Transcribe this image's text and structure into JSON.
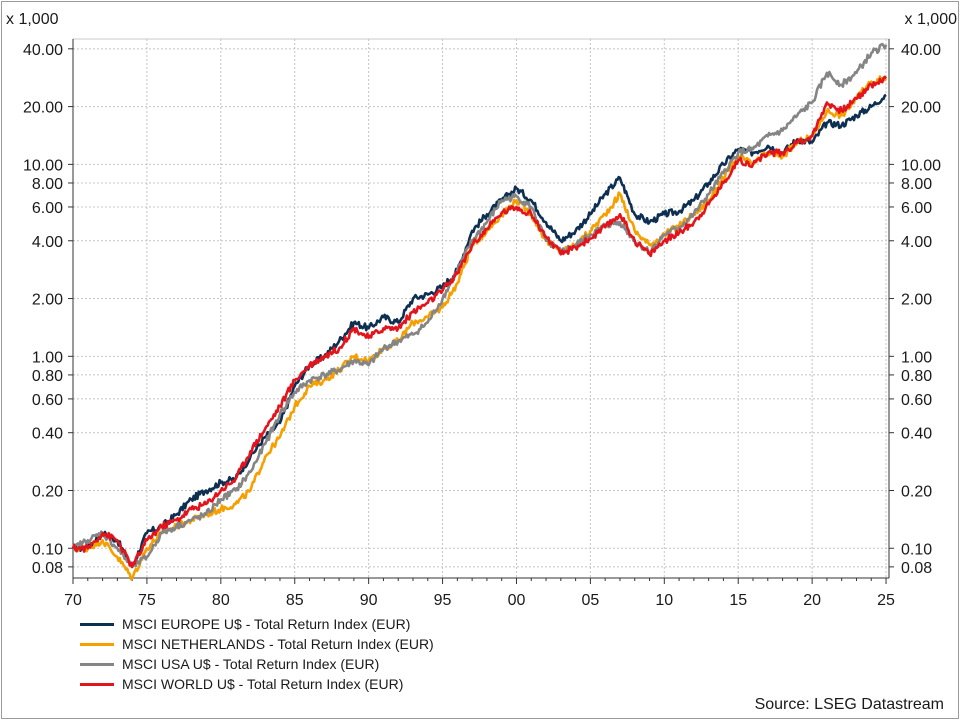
{
  "chart_data": {
    "type": "line",
    "title": "",
    "y_unit_label": "x 1,000",
    "y_scale": "log",
    "ylim": [
      0.07,
      45
    ],
    "y_ticks": [
      0.08,
      0.1,
      0.2,
      0.4,
      0.6,
      0.8,
      1.0,
      2.0,
      4.0,
      6.0,
      8.0,
      10.0,
      20.0,
      40.0
    ],
    "y_tick_labels": [
      "0.08",
      "0.10",
      "0.20",
      "0.40",
      "0.60",
      "0.80",
      "1.00",
      "2.00",
      "4.00",
      "6.00",
      "8.00",
      "10.00",
      "20.00",
      "40.00"
    ],
    "xlim": [
      1970,
      2025.2
    ],
    "x_ticks": [
      1970,
      1975,
      1980,
      1985,
      1990,
      1995,
      2000,
      2005,
      2010,
      2015,
      2020,
      2025
    ],
    "x_tick_labels": [
      "70",
      "75",
      "80",
      "85",
      "90",
      "95",
      "00",
      "05",
      "10",
      "15",
      "20",
      "25"
    ],
    "grid": true,
    "legend_position": "bottom-left",
    "x": [
      1970,
      1971,
      1972,
      1973,
      1974,
      1975,
      1976,
      1977,
      1978,
      1979,
      1980,
      1981,
      1982,
      1983,
      1984,
      1985,
      1986,
      1987,
      1988,
      1989,
      1990,
      1991,
      1992,
      1993,
      1994,
      1995,
      1996,
      1997,
      1998,
      1999,
      2000,
      2001,
      2002,
      2003,
      2004,
      2005,
      2006,
      2007,
      2008,
      2009,
      2010,
      2011,
      2012,
      2013,
      2014,
      2015,
      2016,
      2017,
      2018,
      2019,
      2020,
      2021,
      2022,
      2023,
      2024,
      2025
    ],
    "series": [
      {
        "name": "MSCI EUROPE U$ - Total Return Index (EUR)",
        "color": "#0d2f52",
        "values": [
          0.1,
          0.1,
          0.12,
          0.11,
          0.08,
          0.12,
          0.13,
          0.15,
          0.18,
          0.2,
          0.22,
          0.23,
          0.3,
          0.38,
          0.45,
          0.7,
          0.9,
          1.0,
          1.2,
          1.5,
          1.4,
          1.6,
          1.5,
          2.0,
          2.1,
          2.3,
          2.8,
          4.5,
          5.5,
          6.5,
          7.5,
          6.5,
          5.0,
          4.0,
          4.5,
          5.5,
          7.0,
          8.5,
          5.5,
          5.0,
          5.5,
          5.7,
          6.5,
          8.0,
          10.0,
          12.0,
          11.5,
          12.5,
          11.5,
          13.5,
          13.0,
          16.5,
          16.0,
          18.0,
          20.0,
          23.0
        ]
      },
      {
        "name": "MSCI NETHERLANDS - Total Return Index (EUR)",
        "color": "#f5a000",
        "values": [
          0.1,
          0.1,
          0.11,
          0.09,
          0.07,
          0.1,
          0.12,
          0.13,
          0.14,
          0.15,
          0.16,
          0.17,
          0.2,
          0.3,
          0.38,
          0.55,
          0.7,
          0.75,
          0.85,
          1.0,
          0.95,
          1.1,
          1.2,
          1.5,
          1.6,
          1.8,
          2.4,
          3.8,
          4.5,
          5.5,
          6.5,
          5.5,
          4.0,
          3.5,
          3.8,
          4.5,
          5.5,
          7.0,
          4.5,
          3.8,
          4.3,
          4.8,
          5.5,
          6.5,
          8.5,
          11.0,
          10.0,
          11.5,
          11.0,
          13.0,
          14.0,
          19.0,
          18.0,
          22.0,
          27.0,
          28.0
        ]
      },
      {
        "name": "MSCI USA U$ - Total Return Index (EUR)",
        "color": "#858585",
        "values": [
          0.1,
          0.11,
          0.12,
          0.1,
          0.08,
          0.09,
          0.12,
          0.13,
          0.14,
          0.15,
          0.18,
          0.2,
          0.25,
          0.35,
          0.5,
          0.65,
          0.75,
          0.8,
          0.85,
          0.95,
          0.9,
          1.1,
          1.2,
          1.3,
          1.5,
          2.0,
          2.8,
          4.0,
          5.0,
          6.5,
          6.8,
          6.0,
          4.0,
          3.5,
          3.8,
          4.3,
          4.8,
          5.0,
          4.0,
          3.5,
          4.3,
          4.7,
          5.5,
          7.0,
          9.0,
          11.5,
          12.0,
          14.0,
          15.0,
          18.0,
          21.0,
          30.0,
          26.0,
          30.0,
          38.0,
          42.0
        ]
      },
      {
        "name": "MSCI WORLD U$ - Total Return Index (EUR)",
        "color": "#e3141b",
        "values": [
          0.1,
          0.1,
          0.12,
          0.11,
          0.08,
          0.11,
          0.13,
          0.14,
          0.16,
          0.17,
          0.2,
          0.23,
          0.32,
          0.42,
          0.55,
          0.75,
          0.9,
          1.0,
          1.1,
          1.4,
          1.25,
          1.4,
          1.4,
          1.7,
          1.9,
          2.2,
          2.7,
          3.8,
          4.6,
          5.6,
          6.0,
          5.5,
          4.2,
          3.4,
          3.7,
          4.1,
          4.7,
          5.5,
          4.0,
          3.4,
          4.0,
          4.4,
          5.0,
          6.2,
          8.0,
          10.5,
          10.0,
          11.5,
          11.5,
          13.0,
          14.0,
          21.0,
          19.0,
          22.0,
          26.0,
          28.0
        ]
      }
    ]
  },
  "footer": {
    "source": "Source: LSEG Datastream"
  }
}
